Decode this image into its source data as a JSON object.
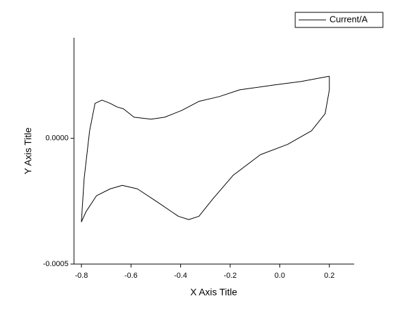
{
  "chart_data": {
    "type": "line",
    "x_label": "X Axis Title",
    "y_label": "Y Axis Title",
    "legend": "top-right",
    "grid": false,
    "xlim": [
      -0.83,
      0.3
    ],
    "xticks": [
      -0.8,
      -0.6,
      -0.4,
      -0.2,
      {
        "value": 0,
        "label": "0.0"
      },
      0.2
    ],
    "ylim": [
      -0.0005,
      0.0004
    ],
    "yticks": [
      {
        "value": -0.0005,
        "label": "-0.0005"
      },
      {
        "value": 0,
        "label": "0.0000"
      }
    ],
    "series": [
      {
        "name": "Current/A",
        "color": "#000000",
        "x": [
          0.2,
          0.087,
          -0.023,
          -0.161,
          -0.244,
          -0.326,
          -0.395,
          -0.464,
          -0.519,
          -0.588,
          -0.63,
          -0.657,
          -0.684,
          -0.717,
          -0.745,
          -0.767,
          -0.789,
          -0.8,
          -0.781,
          -0.739,
          -0.684,
          -0.635,
          -0.574,
          -0.491,
          -0.409,
          -0.367,
          -0.326,
          -0.271,
          -0.188,
          -0.078,
          0.032,
          0.128,
          0.183,
          0.2,
          0.2
        ],
        "values": [
          0.000247,
          0.000226,
          0.000212,
          0.000193,
          0.000166,
          0.000147,
          0.000111,
          8.4e-05,
          7.6e-05,
          8.4e-05,
          0.000117,
          0.000125,
          0.000139,
          0.000152,
          0.000139,
          3e-05,
          -0.00016,
          -0.000332,
          -0.000291,
          -0.000228,
          -0.000201,
          -0.000187,
          -0.000201,
          -0.000255,
          -0.00031,
          -0.000323,
          -0.00031,
          -0.000242,
          -0.000147,
          -6.5e-05,
          -2.4e-05,
          3e-05,
          9.8e-05,
          0.000193,
          0.000247
        ]
      }
    ]
  }
}
